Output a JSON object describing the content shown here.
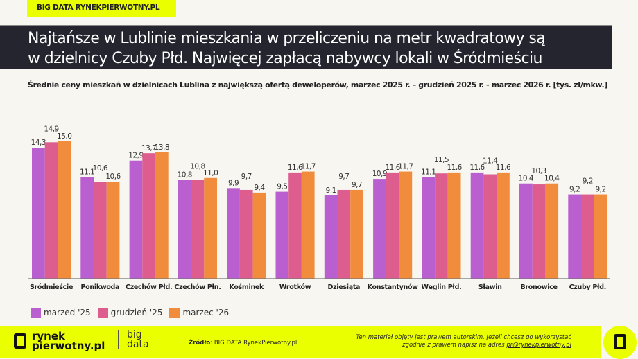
{
  "header": {
    "tag": "BIG DATA RYNEKPIERWOTNY.PL",
    "title_line1": "Najtańsze w Lublinie mieszkania w przeliczeniu na metr kwadratowy są",
    "title_line2": "w dzielnicy Czuby Płd. Najwięcej zapłacą nabywcy lokali w Śródmieściu"
  },
  "chart_data": {
    "type": "bar",
    "title": "Średnie ceny mieszkań w dzielnicach Lublina z największą ofertą deweloperów, marzec 2025 r. – grudzień 2025 r. - marzec 2026 r. [tys. zł/mkw.]",
    "categories": [
      "Śródmieście",
      "Ponikwoda",
      "Czechów Płd.",
      "Czechów Płn.",
      "Kośminek",
      "Wrotków",
      "Dziesiąta",
      "Konstantynów",
      "Węglin Płd.",
      "Sławin",
      "Bronowice",
      "Czuby Płd."
    ],
    "series": [
      {
        "name": "marzed '25",
        "color": "#b95fd0",
        "values": [
          14.3,
          11.1,
          12.9,
          10.8,
          9.9,
          9.5,
          9.1,
          10.9,
          11.1,
          11.6,
          10.4,
          9.2
        ]
      },
      {
        "name": "grudzień '25",
        "color": "#dd5e8e",
        "values": [
          14.9,
          10.6,
          13.7,
          10.8,
          9.7,
          11.6,
          9.7,
          11.6,
          11.5,
          11.4,
          10.3,
          9.2
        ]
      },
      {
        "name": "marzec '26",
        "color": "#f08c3c",
        "values": [
          15.0,
          10.6,
          13.8,
          11.0,
          9.4,
          11.7,
          9.7,
          11.7,
          11.6,
          11.6,
          10.4,
          9.2
        ]
      }
    ],
    "ylim": [
      0,
      15
    ],
    "grid": false,
    "legend": "bottom-left",
    "data_labels": true
  },
  "footer": {
    "logo_line1": "rynek",
    "logo_line2": "pierwotny.pl",
    "big1": "big",
    "big2": "data",
    "source_label": "Źródło",
    "source_text": ": BIG DATA RynekPierwotny.pl",
    "copy_line1": "Ten materiał objęty jest prawem autorskim. Jeżeli chcesz go wykorzystać",
    "copy_line2": "zgodnie z prawem napisz na adres ",
    "email": "pr@rynekpierwotny.pl"
  }
}
